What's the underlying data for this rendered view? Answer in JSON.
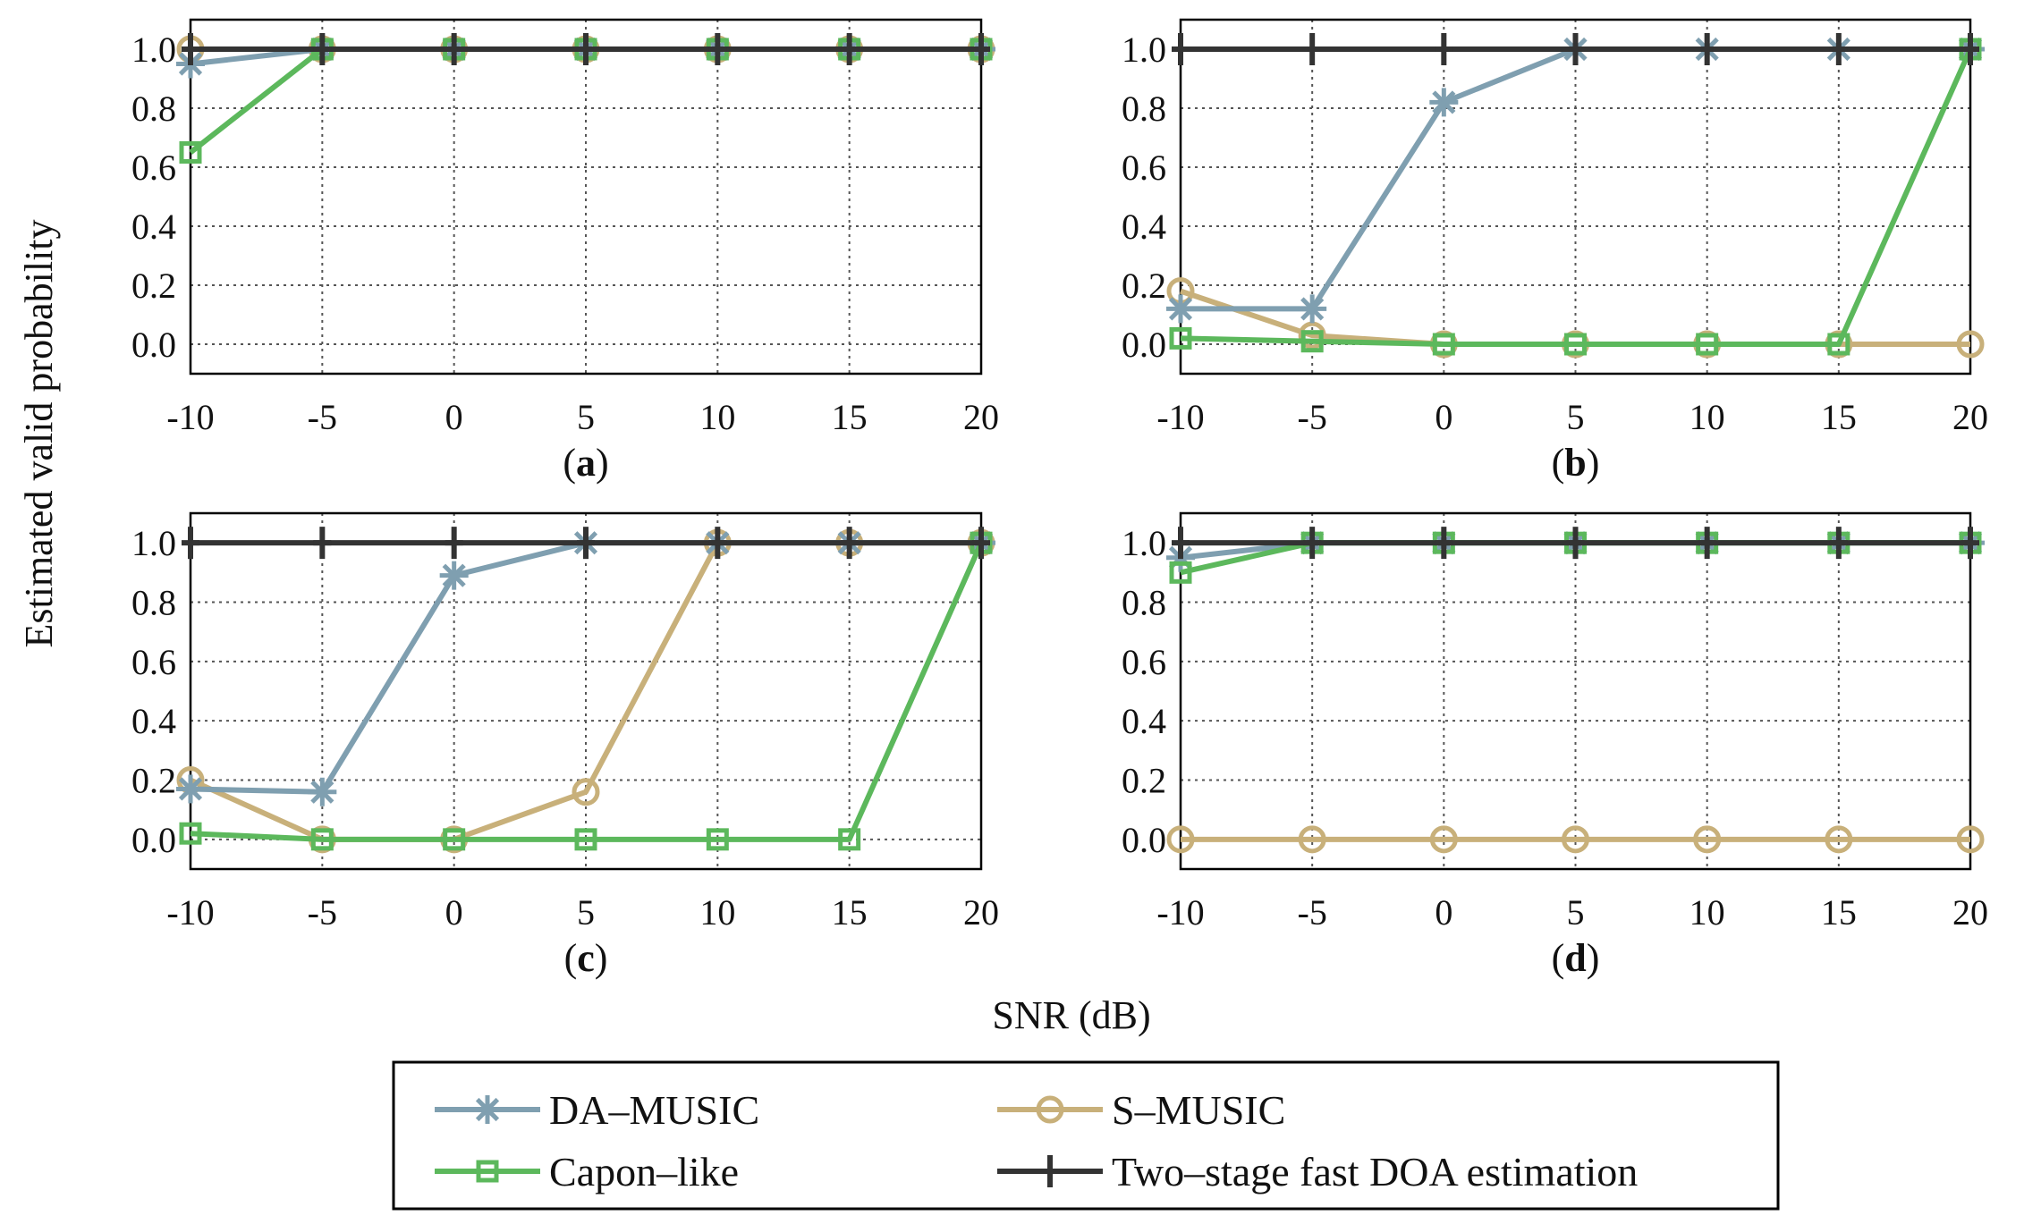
{
  "figure": {
    "ylabel": "Estimated valid probability",
    "xlabel": "SNR (dB)"
  },
  "legend": {
    "entries": [
      {
        "series": "DA–MUSIC",
        "label": "DA–MUSIC"
      },
      {
        "series": "S–MUSIC",
        "label": "S–MUSIC"
      },
      {
        "series": "Capon–like",
        "label": "Capon–like"
      },
      {
        "series": "Two–stage fast DOA estimation",
        "label": "Two–stage fast DOA estimation"
      }
    ]
  },
  "styles": {
    "DA–MUSIC": {
      "color": "#7f9fb0",
      "marker": "asterisk"
    },
    "S–MUSIC": {
      "color": "#c8b07a",
      "marker": "circle"
    },
    "Capon–like": {
      "color": "#5cb85c",
      "marker": "square"
    },
    "Two–stage fast DOA estimation": {
      "color": "#333333",
      "marker": "plus"
    }
  },
  "chart_data": [
    {
      "type": "line",
      "panel": "(a)",
      "x": [
        -10,
        -5,
        0,
        5,
        10,
        15,
        20
      ],
      "xticks": [
        "-10",
        "-5",
        "0",
        "5",
        "10",
        "15",
        "20"
      ],
      "yticks": [
        "0.0",
        "0.2",
        "0.4",
        "0.6",
        "0.8",
        "1.0"
      ],
      "ylim": [
        -0.1,
        1.1
      ],
      "xlim": [
        -10,
        20
      ],
      "grid": true,
      "series": [
        {
          "name": "S–MUSIC",
          "values": [
            1.0,
            1.0,
            1.0,
            1.0,
            1.0,
            1.0,
            1.0
          ]
        },
        {
          "name": "DA–MUSIC",
          "values": [
            0.95,
            1.0,
            1.0,
            1.0,
            1.0,
            1.0,
            1.0
          ]
        },
        {
          "name": "Capon–like",
          "values": [
            0.65,
            1.0,
            1.0,
            1.0,
            1.0,
            1.0,
            1.0
          ]
        },
        {
          "name": "Two–stage fast DOA estimation",
          "values": [
            1.0,
            1.0,
            1.0,
            1.0,
            1.0,
            1.0,
            1.0
          ]
        }
      ]
    },
    {
      "type": "line",
      "panel": "(b)",
      "x": [
        -10,
        -5,
        0,
        5,
        10,
        15,
        20
      ],
      "xticks": [
        "-10",
        "-5",
        "0",
        "5",
        "10",
        "15",
        "20"
      ],
      "yticks": [
        "0.0",
        "0.2",
        "0.4",
        "0.6",
        "0.8",
        "1.0"
      ],
      "ylim": [
        -0.1,
        1.1
      ],
      "xlim": [
        -10,
        20
      ],
      "grid": true,
      "series": [
        {
          "name": "S–MUSIC",
          "values": [
            0.18,
            0.03,
            0.0,
            0.0,
            0.0,
            0.0,
            0.0
          ]
        },
        {
          "name": "DA–MUSIC",
          "values": [
            0.12,
            0.12,
            0.82,
            1.0,
            1.0,
            1.0,
            1.0
          ]
        },
        {
          "name": "Capon–like",
          "values": [
            0.02,
            0.01,
            0.0,
            0.0,
            0.0,
            0.0,
            1.0
          ]
        },
        {
          "name": "Two–stage fast DOA estimation",
          "values": [
            1.0,
            1.0,
            1.0,
            1.0,
            1.0,
            1.0,
            1.0
          ]
        }
      ]
    },
    {
      "type": "line",
      "panel": "(c)",
      "x": [
        -10,
        -5,
        0,
        5,
        10,
        15,
        20
      ],
      "xticks": [
        "-10",
        "-5",
        "0",
        "5",
        "10",
        "15",
        "20"
      ],
      "yticks": [
        "0.0",
        "0.2",
        "0.4",
        "0.6",
        "0.8",
        "1.0"
      ],
      "ylim": [
        -0.1,
        1.1
      ],
      "xlim": [
        -10,
        20
      ],
      "grid": true,
      "series": [
        {
          "name": "S–MUSIC",
          "values": [
            0.2,
            0.0,
            0.0,
            0.16,
            1.0,
            1.0,
            1.0
          ]
        },
        {
          "name": "DA–MUSIC",
          "values": [
            0.17,
            0.16,
            0.89,
            1.0,
            1.0,
            1.0,
            1.0
          ]
        },
        {
          "name": "Capon–like",
          "values": [
            0.02,
            0.0,
            0.0,
            0.0,
            0.0,
            0.0,
            1.0
          ]
        },
        {
          "name": "Two–stage fast DOA estimation",
          "values": [
            1.0,
            1.0,
            1.0,
            1.0,
            1.0,
            1.0,
            1.0
          ]
        }
      ]
    },
    {
      "type": "line",
      "panel": "(d)",
      "x": [
        -10,
        -5,
        0,
        5,
        10,
        15,
        20
      ],
      "xticks": [
        "-10",
        "-5",
        "0",
        "5",
        "10",
        "15",
        "20"
      ],
      "yticks": [
        "0.0",
        "0.2",
        "0.4",
        "0.6",
        "0.8",
        "1.0"
      ],
      "ylim": [
        -0.1,
        1.1
      ],
      "xlim": [
        -10,
        20
      ],
      "grid": true,
      "series": [
        {
          "name": "S–MUSIC",
          "values": [
            0.0,
            0.0,
            0.0,
            0.0,
            0.0,
            0.0,
            0.0
          ]
        },
        {
          "name": "DA–MUSIC",
          "values": [
            0.95,
            1.0,
            1.0,
            1.0,
            1.0,
            1.0,
            1.0
          ]
        },
        {
          "name": "Capon–like",
          "values": [
            0.9,
            1.0,
            1.0,
            1.0,
            1.0,
            1.0,
            1.0
          ]
        },
        {
          "name": "Two–stage fast DOA estimation",
          "values": [
            1.0,
            1.0,
            1.0,
            1.0,
            1.0,
            1.0,
            1.0
          ]
        }
      ]
    }
  ]
}
